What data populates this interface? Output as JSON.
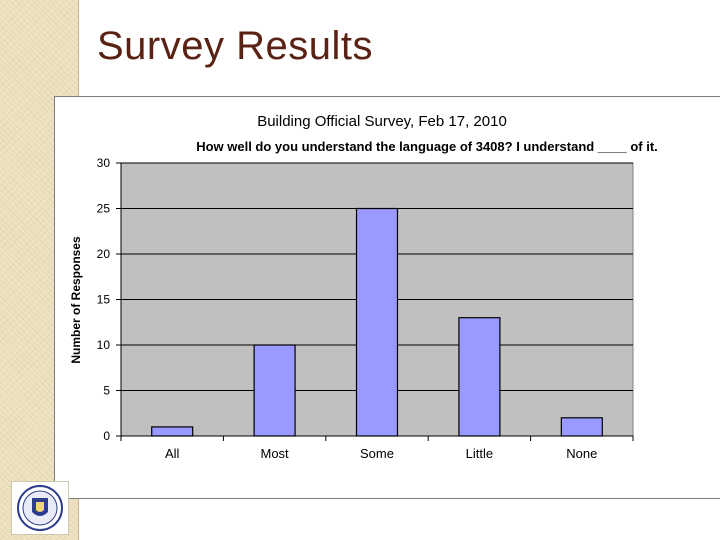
{
  "slide": {
    "title": "Survey Results"
  },
  "colors": {
    "title": "#5a2214",
    "plot_bg": "#c0c0c0",
    "bar_fill": "#9999ff",
    "grid": "#000000",
    "band": "#efe3c4"
  },
  "icons": {
    "seal": "massachusetts-seal-icon"
  },
  "chart_data": {
    "type": "bar",
    "title": "Building Official Survey, Feb 17, 2010",
    "subtitle": "How well do you understand the language of 3408?  I understand ____ of it.",
    "xlabel": "",
    "ylabel": "Number of Responses",
    "categories": [
      "All",
      "Most",
      "Some",
      "Little",
      "None"
    ],
    "values": [
      1,
      10,
      25,
      13,
      2
    ],
    "ylim": [
      0,
      30
    ],
    "yticks": [
      0,
      5,
      10,
      15,
      20,
      25,
      30
    ],
    "grid": true,
    "legend": false
  }
}
